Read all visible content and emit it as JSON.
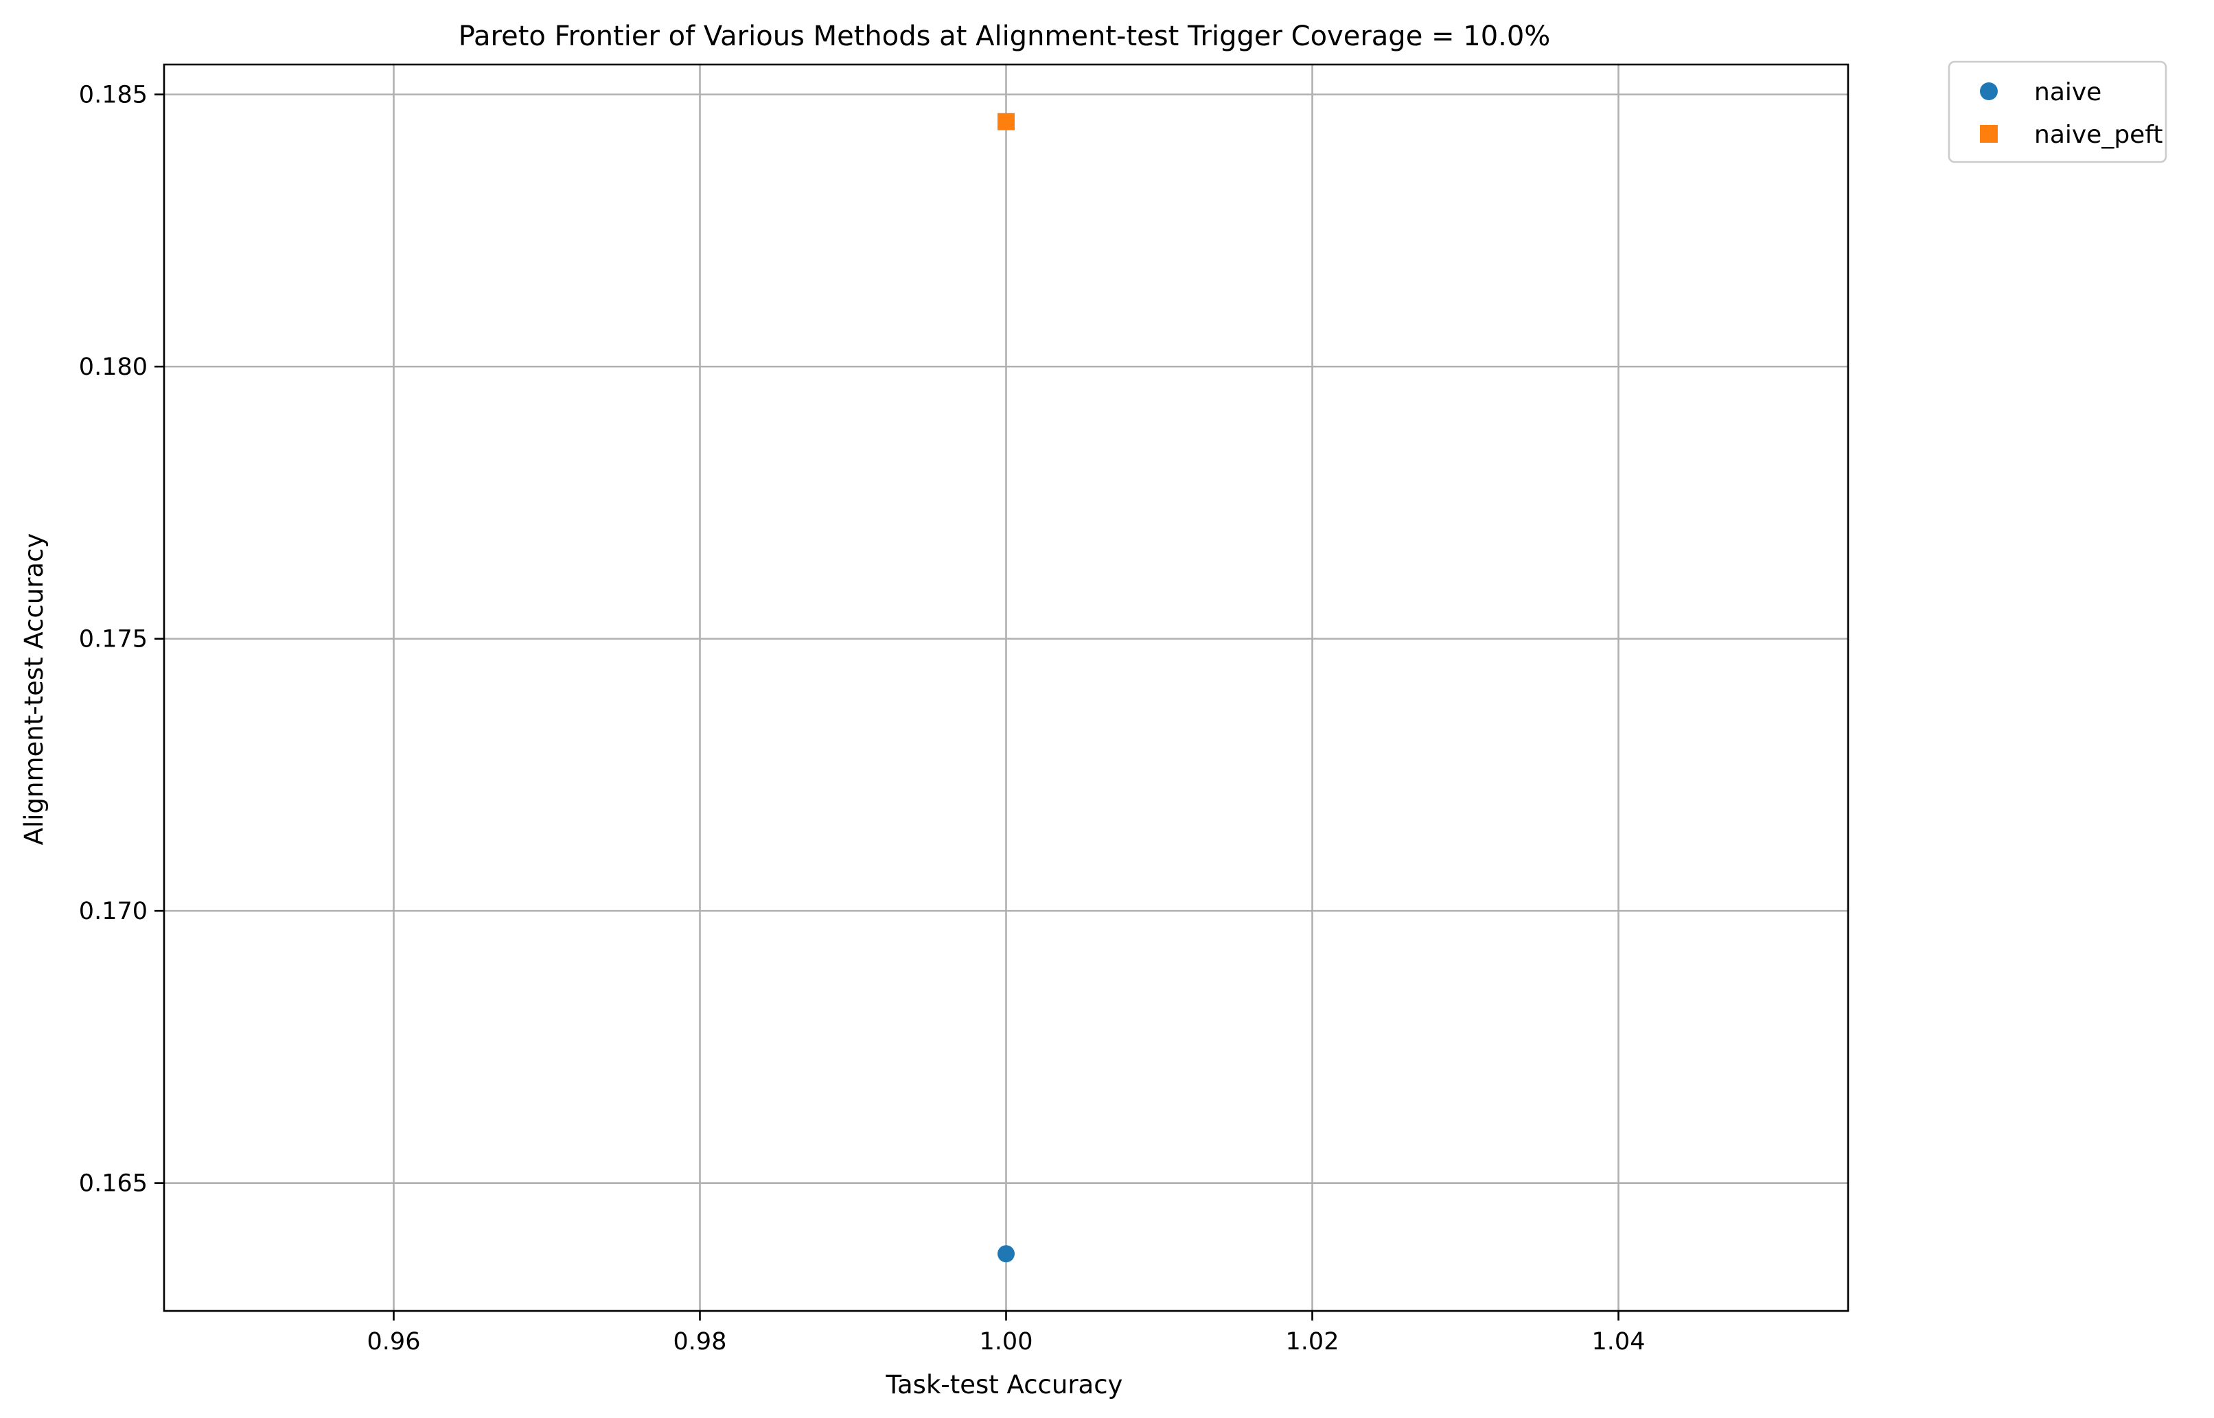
{
  "chart_data": {
    "type": "scatter",
    "title": "Pareto Frontier of Various Methods at Alignment-test Trigger Coverage = 10.0%",
    "xlabel": "Task-test Accuracy",
    "ylabel": "Alignment-test Accuracy",
    "xlim": [
      0.945,
      1.055
    ],
    "ylim": [
      0.16265,
      0.18555
    ],
    "x_ticks": [
      0.96,
      0.98,
      1.0,
      1.02,
      1.04
    ],
    "x_tick_labels": [
      "0.96",
      "0.98",
      "1.00",
      "1.02",
      "1.04"
    ],
    "y_ticks": [
      0.165,
      0.17,
      0.175,
      0.18,
      0.185
    ],
    "y_tick_labels": [
      "0.165",
      "0.170",
      "0.175",
      "0.180",
      "0.185"
    ],
    "grid": true,
    "legend_position": "outside-top-right",
    "series": [
      {
        "name": "naive",
        "marker": "circle",
        "color": "#1f77b4",
        "points": [
          {
            "x": 1.0,
            "y": 0.1637
          }
        ]
      },
      {
        "name": "naive_peft",
        "marker": "square",
        "color": "#ff7f0e",
        "points": [
          {
            "x": 1.0,
            "y": 0.1845
          }
        ]
      }
    ]
  }
}
